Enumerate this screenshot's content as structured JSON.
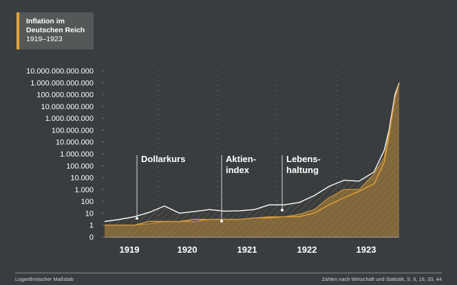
{
  "chart_data": {
    "type": "area",
    "title": "Inflation im",
    "title_line2": "Deutschen Reich",
    "subtitle": "1919–1923",
    "scale": "log",
    "y_tick_labels": [
      "10.000.000.000.000",
      "1.000.000.000.000",
      "100.000.000.000",
      "10.000.000.000",
      "1.000.000.000",
      "100.000.000",
      "10.000.000",
      "1.000.000",
      "100.000",
      "10.000",
      "1.000",
      "100",
      "10",
      "1",
      "0"
    ],
    "x_tick_labels": [
      "1919",
      "1920",
      "1921",
      "1922",
      "1923"
    ],
    "x": [
      1919.0,
      1919.25,
      1919.5,
      1919.75,
      1920.0,
      1920.25,
      1920.5,
      1920.75,
      1921.0,
      1921.25,
      1921.5,
      1921.75,
      1922.0,
      1922.25,
      1922.5,
      1922.75,
      1923.0,
      1923.25,
      1923.5,
      1923.67,
      1923.75,
      1923.85,
      1923.92
    ],
    "series": [
      {
        "name": "Dollarkurs",
        "values": [
          2,
          3,
          5,
          12,
          40,
          10,
          14,
          20,
          15,
          16,
          20,
          50,
          50,
          80,
          300,
          1800,
          6000,
          5000,
          30000,
          2000000,
          100000000,
          100000000000,
          1000000000000
        ]
      },
      {
        "name": "Aktienindex",
        "values": [
          1,
          1,
          1,
          2,
          2,
          2,
          3,
          3,
          3,
          3,
          4,
          4,
          5,
          5,
          10,
          50,
          200,
          700,
          3000,
          200000,
          30000000,
          50000000000,
          900000000000
        ]
      },
      {
        "name": "Lebenshaltung",
        "values": [
          1,
          1,
          1,
          1.3,
          2,
          2,
          2,
          3,
          3,
          3,
          4,
          5,
          5,
          8,
          20,
          200,
          1000,
          1000,
          20000,
          500000,
          50000000,
          50000000000,
          700000000000
        ]
      }
    ],
    "legend_labels": [
      "Dollarkurs",
      "Aktien-",
      "index",
      "Lebens-",
      "haltung"
    ],
    "footer_left": "Logarithmischer Maßstab",
    "footer_right": "Zahlen nach Wirtschaft und Statistik, S. 6, 16, 33, 44",
    "colors": {
      "background": "#3a3d3f",
      "accent": "#e7a33a",
      "fill": "#8c6d3c",
      "text": "#ffffff",
      "grid": "#6b6e70"
    }
  }
}
